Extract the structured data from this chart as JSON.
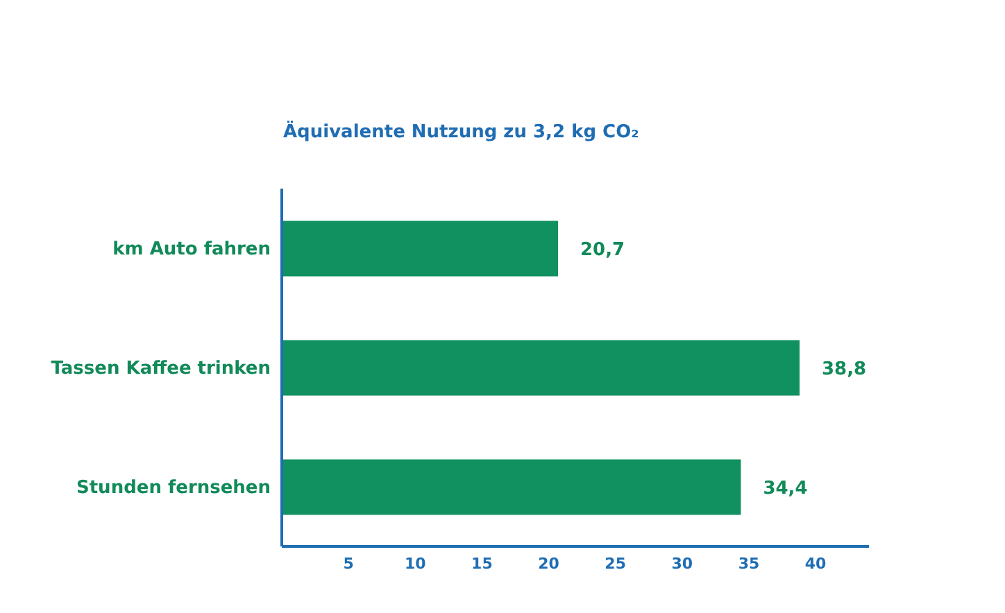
{
  "chart_data": {
    "type": "bar",
    "orientation": "horizontal",
    "title": "Äquivalente Nutzung zu 3,2 kg CO₂",
    "categories": [
      "km Auto fahren",
      "Tassen Kaffee trinken",
      "Stunden fernsehen"
    ],
    "values": [
      20.7,
      38.8,
      34.4
    ],
    "color": "#119160",
    "value_labels": [
      "20,7",
      "38,8",
      "34,4"
    ],
    "xlim": [
      0,
      44
    ],
    "xticks": [
      5,
      10,
      15,
      20,
      25,
      30,
      35,
      40
    ],
    "grid": false
  }
}
